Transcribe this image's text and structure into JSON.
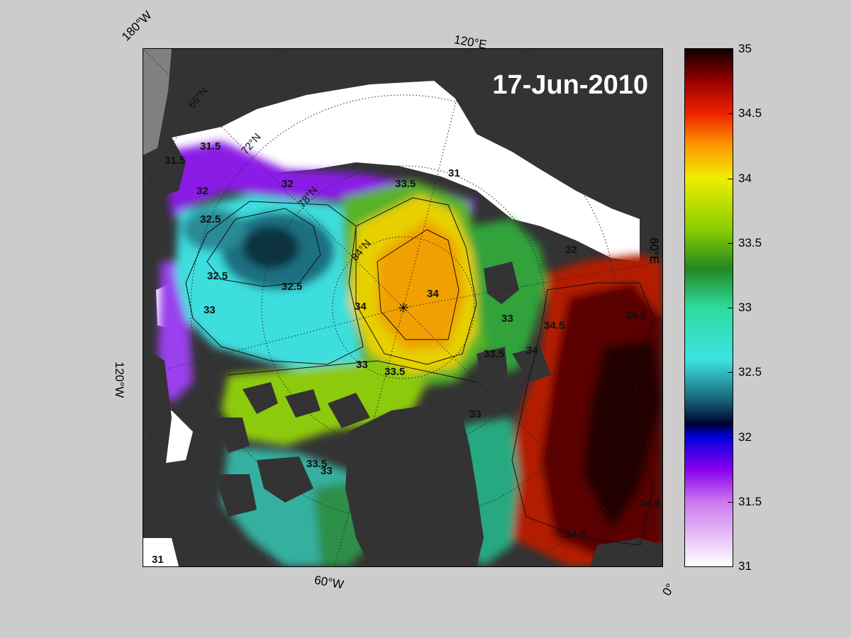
{
  "title": "17-Jun-2010",
  "edge_labels": {
    "top_left": "180°W",
    "top": "120°E",
    "right": "60°E",
    "left": "120°W",
    "bottom": "60°W",
    "bottom_right": "0°"
  },
  "grid_labels": [
    "66°N",
    "72°N",
    "78°N",
    "84°N"
  ],
  "contour_labels": [
    "31.5",
    "31.5",
    "32",
    "32",
    "32.5",
    "32.5",
    "32.5",
    "33",
    "33",
    "33",
    "33",
    "33.5",
    "33.5",
    "33.5",
    "33.5",
    "34",
    "34",
    "34",
    "34.5",
    "34.5",
    "34.5",
    "34.5",
    "31",
    "31",
    "32",
    "33"
  ],
  "colorbar": {
    "min": 31,
    "max": 35,
    "ticks": [
      "35",
      "34.5",
      "34",
      "33.5",
      "33",
      "32.5",
      "32",
      "31.5",
      "31"
    ],
    "tick_values": [
      35,
      34.5,
      34,
      33.5,
      33,
      32.5,
      32,
      31.5,
      31
    ],
    "gradient_stops": [
      {
        "value": 31.0,
        "color": "#ffffff"
      },
      {
        "value": 31.5,
        "color": "#cc77ee"
      },
      {
        "value": 31.75,
        "color": "#8800ee"
      },
      {
        "value": 32.0,
        "color": "#0000dd"
      },
      {
        "value": 32.1,
        "color": "#000033"
      },
      {
        "value": 32.3,
        "color": "#1a6a7a"
      },
      {
        "value": 32.6,
        "color": "#3de3e3"
      },
      {
        "value": 33.0,
        "color": "#2edb9e"
      },
      {
        "value": 33.3,
        "color": "#228822"
      },
      {
        "value": 33.6,
        "color": "#88cc00"
      },
      {
        "value": 34.0,
        "color": "#eeee00"
      },
      {
        "value": 34.25,
        "color": "#ff9900"
      },
      {
        "value": 34.5,
        "color": "#ee2200"
      },
      {
        "value": 34.75,
        "color": "#990000"
      },
      {
        "value": 35.0,
        "color": "#110000"
      }
    ]
  },
  "colors": {
    "land": "#333333",
    "ice": "#ffffff",
    "background": "#cccccc"
  }
}
